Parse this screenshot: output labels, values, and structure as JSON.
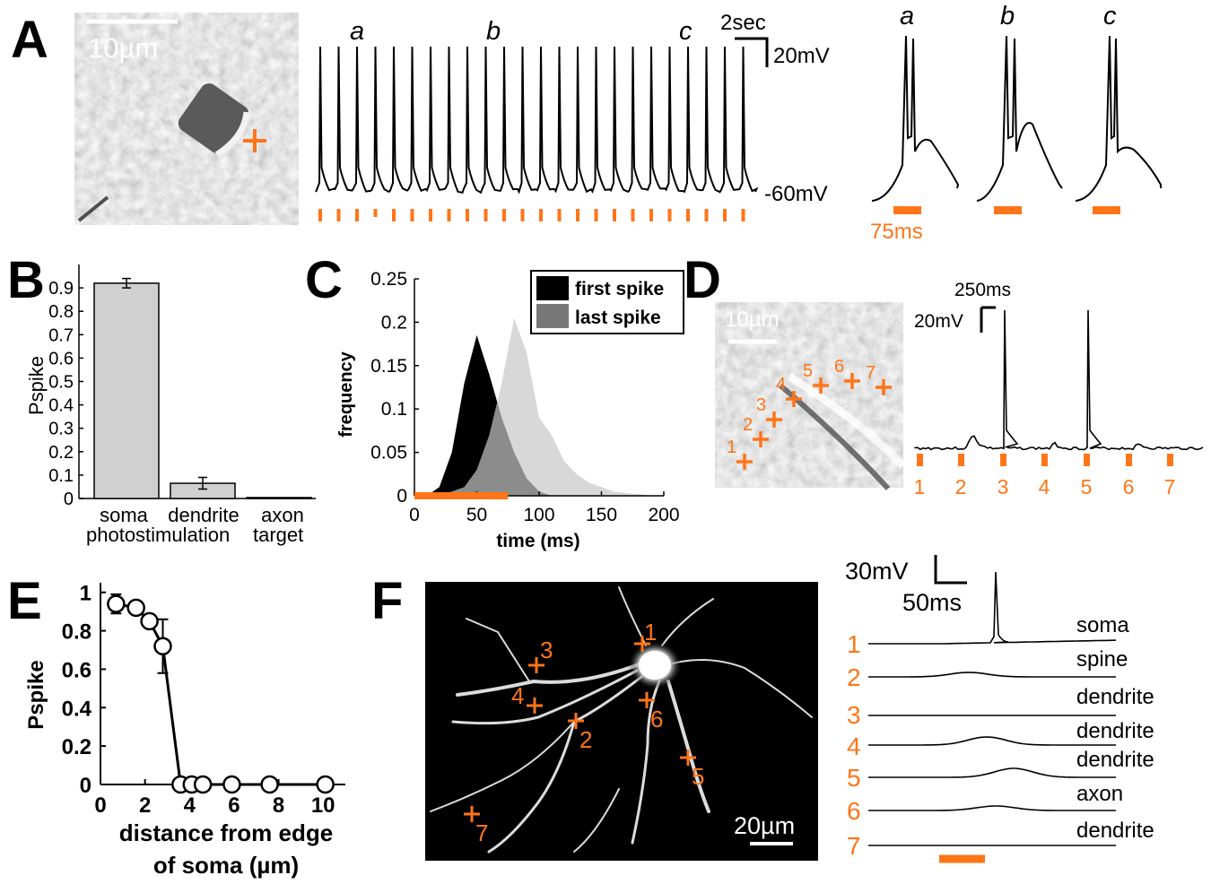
{
  "panel_letters": [
    "A",
    "B",
    "C",
    "D",
    "E",
    "F"
  ],
  "panelA": {
    "scale_bar_label": "10µm",
    "trace_labels": [
      "a",
      "b",
      "c"
    ],
    "time_scale_label": "2sec",
    "voltage_scale_label": "20mV",
    "baseline_label": "-60mV",
    "stim_duration_label": "75ms",
    "zoom_labels": [
      "a",
      "b",
      "c"
    ],
    "n_spikes": 24
  },
  "panelB": {
    "chart_data": {
      "type": "bar",
      "categories": [
        "soma",
        "dendrite",
        "axon"
      ],
      "values": [
        0.92,
        0.065,
        0.0
      ],
      "errors": [
        0.02,
        0.025,
        0.0
      ],
      "ylabel": "Pspike",
      "xlabel_lines": [
        "photostimulation",
        "target"
      ],
      "ylim": [
        0,
        1.0
      ],
      "yticks": [
        "0",
        "0.1",
        "0.2",
        "0.3",
        "0.4",
        "0.5",
        "0.6",
        "0.7",
        "0.8",
        "0.9"
      ],
      "bar_color": "#d0d0d0"
    }
  },
  "panelC": {
    "chart_data": {
      "type": "area",
      "xlabel": "time (ms)",
      "ylabel": "frequency",
      "xlim": [
        0,
        200
      ],
      "ylim": [
        0,
        0.25
      ],
      "xticks": [
        "0",
        "50",
        "100",
        "150",
        "200"
      ],
      "yticks": [
        "0",
        "0.05",
        "0.1",
        "0.15",
        "0.2",
        "0.25"
      ],
      "series": [
        {
          "name": "first spike",
          "color": "#000000",
          "x": [
            0,
            10,
            20,
            30,
            40,
            50,
            60,
            70,
            80,
            90,
            100,
            110,
            120,
            130
          ],
          "y": [
            0,
            0,
            0.01,
            0.05,
            0.13,
            0.185,
            0.14,
            0.09,
            0.05,
            0.02,
            0.005,
            0,
            0,
            0
          ]
        },
        {
          "name": "last spike",
          "color": "#c8c8c8",
          "x": [
            0,
            20,
            30,
            40,
            50,
            60,
            70,
            80,
            90,
            100,
            110,
            120,
            130,
            140,
            150,
            160,
            170,
            180,
            190
          ],
          "y": [
            0,
            0,
            0.005,
            0.01,
            0.03,
            0.07,
            0.13,
            0.205,
            0.165,
            0.09,
            0.07,
            0.04,
            0.025,
            0.015,
            0.01,
            0.005,
            0.003,
            0.002,
            0
          ]
        }
      ],
      "stim_bar_ms": [
        0,
        75
      ],
      "legend_placement": "top-right"
    }
  },
  "panelD": {
    "scale_bar_label": "10µm",
    "site_labels": [
      "1",
      "2",
      "3",
      "4",
      "5",
      "6",
      "7"
    ],
    "time_scale_label": "250ms",
    "voltage_scale_label": "20mV"
  },
  "panelE": {
    "chart_data": {
      "type": "scatter",
      "xlabel_lines": [
        "distance from edge",
        "of soma (µm)"
      ],
      "ylabel": "Pspike",
      "xlim": [
        0,
        11
      ],
      "ylim": [
        0,
        1.05
      ],
      "xticks": [
        "0",
        "2",
        "4",
        "6",
        "8",
        "10"
      ],
      "yticks": [
        "0",
        "0.2",
        "0.4",
        "0.6",
        "0.8",
        "1"
      ],
      "x": [
        0.7,
        1.6,
        2.2,
        2.8,
        3.6,
        4.1,
        4.6,
        5.9,
        7.6,
        10.1
      ],
      "y": [
        0.94,
        0.92,
        0.85,
        0.72,
        0,
        0,
        0,
        0,
        0,
        0
      ],
      "errors": [
        0.05,
        0.02,
        0.02,
        0.14,
        0,
        0,
        0,
        0,
        0,
        0
      ]
    }
  },
  "panelF": {
    "scale_bar_label": "20µm",
    "site_labels": [
      "1",
      "2",
      "3",
      "4",
      "5",
      "6",
      "7"
    ],
    "voltage_scale_label": "30mV",
    "time_scale_label": "50ms",
    "trace_numbers": [
      "1",
      "2",
      "3",
      "4",
      "5",
      "6",
      "7"
    ],
    "trace_targets": [
      "soma",
      "spine",
      "dendrite",
      "dendrite",
      "dendrite",
      "axon",
      "dendrite"
    ]
  },
  "colors": {
    "accent_orange": "#ff7518",
    "trace": "#000000"
  }
}
